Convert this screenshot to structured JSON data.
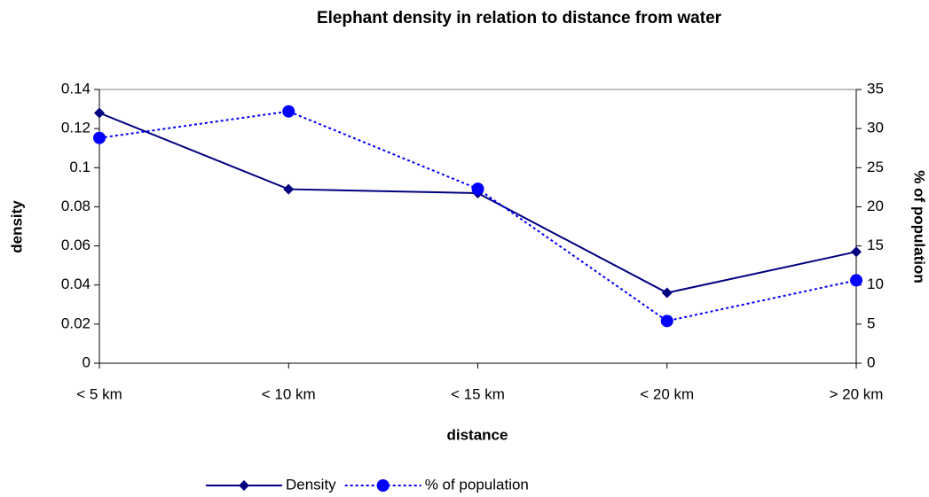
{
  "chart_data": {
    "type": "line",
    "title": "Elephant density in relation to distance from water",
    "x_label": "distance",
    "y_label": "density",
    "y2_label": "% of population",
    "categories": [
      "< 5 km",
      "< 10 km",
      "< 15 km",
      "< 20 km",
      "> 20 km"
    ],
    "series": [
      {
        "name": "Density",
        "color": "#000080",
        "marker": "diamond",
        "dash": "solid",
        "values": [
          0.128,
          0.089,
          0.087,
          0.036,
          0.057
        ]
      },
      {
        "name": "% of population",
        "color": "#0000ff",
        "marker": "circle",
        "dash": "dotted",
        "axis": "y2",
        "values": [
          28.8,
          32.2,
          22.3,
          5.4,
          10.6
        ]
      }
    ],
    "ylim": [
      0,
      0.14
    ],
    "yticks": [
      0,
      0.02,
      0.04,
      0.06,
      0.08,
      0.1,
      0.12,
      0.14
    ],
    "y2lim": [
      0,
      35
    ],
    "y2ticks": [
      0,
      5,
      10,
      15,
      20,
      25,
      30,
      35
    ],
    "legend": "bottom"
  }
}
